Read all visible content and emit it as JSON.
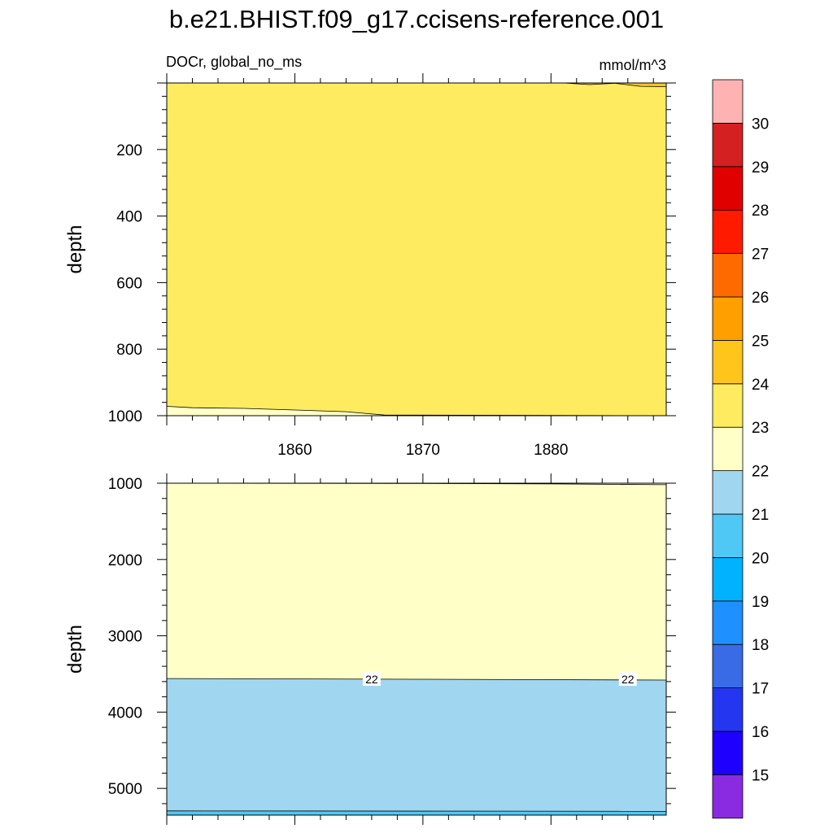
{
  "title": "b.e21.BHIST.f09_g17.ccisens-reference.001",
  "left_label": "DOCr, global_no_ms",
  "right_label": "mmol/m^3",
  "chart_data": [
    {
      "type": "contour",
      "panel": "upper",
      "ylabel": "depth",
      "xlabel": "",
      "xlim": [
        1850,
        1889
      ],
      "ylim": [
        1000,
        0
      ],
      "x_ticks": [
        1860,
        1870,
        1880
      ],
      "x_tick_labels": [
        "1860",
        "1870",
        "1880"
      ],
      "y_ticks": [
        200,
        400,
        600,
        800,
        1000
      ],
      "y_tick_labels": [
        "200",
        "400",
        "600",
        "800",
        "1000"
      ],
      "regions": [
        {
          "band": "23-24",
          "description": "upper layer, 0 to ~1000"
        },
        {
          "band": "22-23",
          "boundary_22_23": {
            "x": [
              1850,
              1852,
              1856,
              1860,
              1864,
              1867,
              1889
            ],
            "y": [
              972,
              976,
              978,
              983,
              988,
              998,
              1000
            ]
          }
        },
        {
          "band": "24-25",
          "boundary_24_25": {
            "x": [
              1881,
              1883,
              1885,
              1887,
              1889
            ],
            "y": [
              0,
              5,
              1,
              10,
              11
            ]
          }
        }
      ],
      "contour_labels": []
    },
    {
      "type": "contour",
      "panel": "lower",
      "ylabel": "depth",
      "xlabel": "",
      "xlim": [
        1850,
        1889
      ],
      "ylim": [
        5350,
        1000
      ],
      "x_ticks": [
        1860,
        1870,
        1880
      ],
      "x_tick_labels": [
        "",
        "",
        ""
      ],
      "y_ticks": [
        1000,
        2000,
        3000,
        4000,
        5000
      ],
      "y_tick_labels": [
        "1000",
        "2000",
        "3000",
        "4000",
        "5000"
      ],
      "regions": [
        {
          "band": "22-23",
          "description": "~1000 to ~3570"
        },
        {
          "band": "21-22",
          "boundary_22": {
            "x": [
              1850,
              1870,
              1889
            ],
            "y": [
              3560,
              3570,
              3580
            ]
          }
        },
        {
          "band": "20-21",
          "boundary_21": {
            "x": [
              1850,
              1889
            ],
            "y": [
              5295,
              5300
            ]
          }
        }
      ],
      "boundary_23": {
        "x": [
          1850,
          1870,
          1880,
          1889
        ],
        "y": [
          1000,
          1003,
          1008,
          1020
        ]
      },
      "contour_labels": [
        {
          "text": "22",
          "x": 1866,
          "y": 3570
        },
        {
          "text": "22",
          "x": 1886,
          "y": 3570
        }
      ]
    }
  ],
  "colorbar": {
    "levels": [
      "15",
      "16",
      "17",
      "18",
      "19",
      "20",
      "21",
      "22",
      "23",
      "24",
      "25",
      "26",
      "27",
      "28",
      "29",
      "30"
    ],
    "colors": [
      "#8a2be2",
      "#1e00ff",
      "#2436f0",
      "#3a6be6",
      "#1e90ff",
      "#00b2ff",
      "#4fc8f5",
      "#a0d6f0",
      "#ffffc8",
      "#ffeb60",
      "#ffc51a",
      "#ff9f00",
      "#ff6a00",
      "#ff1a00",
      "#e10000",
      "#d42020",
      "#ffb2b2"
    ],
    "band_colors": {
      "20-21": "#4fc8f5",
      "21-22": "#a0d6f0",
      "22-23": "#ffffc8",
      "23-24": "#ffeb60",
      "24-25": "#ffc51a"
    }
  }
}
